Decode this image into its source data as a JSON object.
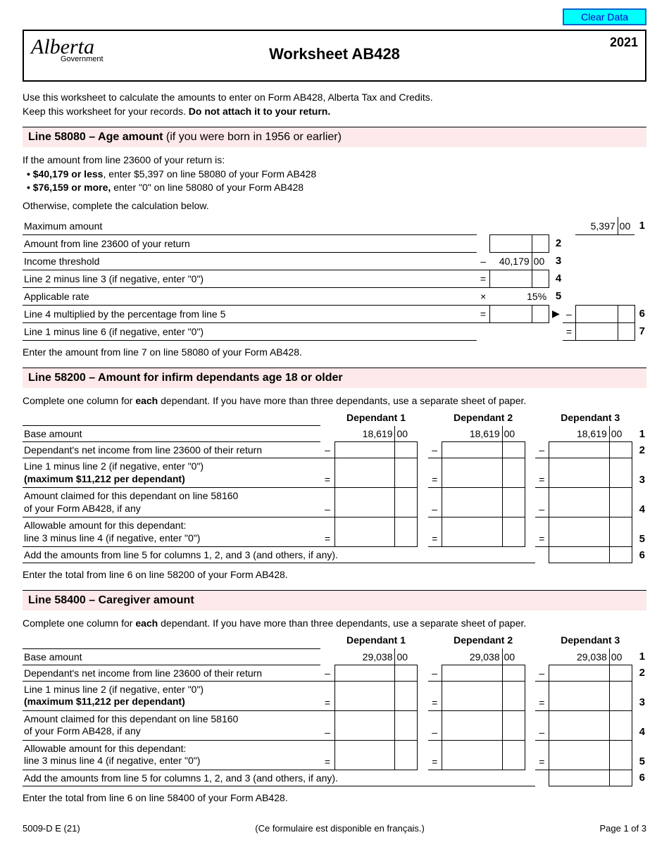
{
  "header": {
    "clear_button": "Clear Data",
    "logo_text": "Alberta",
    "logo_sub": "Government",
    "year": "2021",
    "title": "Worksheet AB428"
  },
  "intro": {
    "line1": "Use this worksheet to calculate the amounts to enter on Form AB428, Alberta Tax and Credits.",
    "line2_pre": "Keep this worksheet for your records. ",
    "line2_bold": "Do not attach it to your return."
  },
  "section_age": {
    "head_bold": "Line 58080 – Age amount",
    "head_rest": " (if you were born in 1956 or earlier)",
    "p1": "If the amount from line 23600 of your return is:",
    "b1_bold": "$40,179 or less",
    "b1_rest": ", enter $5,397 on line 58080 of your Form AB428",
    "b2_bold": "$76,159 or more,",
    "b2_rest": " enter \"0\" on line 58080 of your Form AB428",
    "p2": "Otherwise, complete the calculation below.",
    "rows": {
      "r1": {
        "label": "Maximum amount",
        "dollars": "5,397",
        "cents": "00",
        "num": "1"
      },
      "r2": {
        "label": "Amount from line 23600 of your return",
        "num": "2"
      },
      "r3": {
        "label": "Income threshold",
        "op": "–",
        "dollars": "40,179",
        "cents": "00",
        "num": "3"
      },
      "r4": {
        "label": "Line 2 minus line 3 (if negative, enter \"0\")",
        "op": "=",
        "num": "4"
      },
      "r5": {
        "label": "Applicable rate",
        "op": "×",
        "pct": "15%",
        "num": "5"
      },
      "r6": {
        "label": "Line 4 multiplied by the percentage from line 5",
        "op": "=",
        "arrow": "▶",
        "op2": "–",
        "num": "6"
      },
      "r7": {
        "label": "Line 1 minus line 6 (if negative, enter \"0\")",
        "op2": "=",
        "num": "7"
      }
    },
    "note": "Enter the amount from line 7 on line 58080 of your Form AB428."
  },
  "section_infirm": {
    "head_bold": "Line 58200 – Amount for infirm dependants age 18 or older",
    "intro_pre": "Complete one column for ",
    "intro_bold": "each",
    "intro_post": " dependant. If you have more than three dependants, use a separate sheet of paper.",
    "col_labels": {
      "d1": "Dependant 1",
      "d2": "Dependant 2",
      "d3": "Dependant 3"
    },
    "base_dollars": "18,619",
    "base_cents": "00",
    "rows": {
      "r1": {
        "label": "Base amount",
        "num": "1"
      },
      "r2": {
        "label": "Dependant's net income from line 23600 of their return",
        "op": "–",
        "num": "2"
      },
      "r3": {
        "label_a": "Line 1 minus line 2 (if negative, enter \"0\")",
        "label_b": "(maximum $11,212 per dependant)",
        "op": "=",
        "num": "3"
      },
      "r4": {
        "label_a": "Amount claimed for this dependant on line 58160",
        "label_b": "of your Form AB428, if any",
        "op": "–",
        "num": "4"
      },
      "r5": {
        "label_a": "Allowable amount for this dependant:",
        "label_b": "line 3 minus line 4 (if negative, enter \"0\")",
        "op": "=",
        "num": "5"
      },
      "r6": {
        "label": "Add the amounts from line 5 for columns 1, 2, and 3 (and others, if any).",
        "num": "6"
      }
    },
    "note": "Enter the total from line 6 on line 58200 of your Form AB428."
  },
  "section_caregiver": {
    "head_bold": "Line 58400 – Caregiver amount",
    "intro_pre": "Complete one column for ",
    "intro_bold": "each",
    "intro_post": " dependant. If you have more than three dependants, use a separate sheet of paper.",
    "col_labels": {
      "d1": "Dependant 1",
      "d2": "Dependant 2",
      "d3": "Dependant 3"
    },
    "base_dollars": "29,038",
    "base_cents": "00",
    "rows": {
      "r1": {
        "label": "Base amount",
        "num": "1"
      },
      "r2": {
        "label": "Dependant's net income from line 23600 of their return",
        "op": "–",
        "num": "2"
      },
      "r3": {
        "label_a": "Line 1 minus line 2 (if negative, enter \"0\")",
        "label_b": "(maximum $11,212 per dependant)",
        "op": "=",
        "num": "3"
      },
      "r4": {
        "label_a": "Amount claimed for this dependant on line 58160",
        "label_b": "of your Form AB428, if any",
        "op": "–",
        "num": "4"
      },
      "r5": {
        "label_a": "Allowable amount for this dependant:",
        "label_b": "line 3 minus line 4 (if negative, enter \"0\")",
        "op": "=",
        "num": "5"
      },
      "r6": {
        "label": "Add the amounts from line 5 for columns 1, 2, and 3 (and others, if any).",
        "num": "6"
      }
    },
    "note": "Enter the total from line 6 on line 58400 of your Form AB428."
  },
  "footer": {
    "code": "5009-D E (21)",
    "french": "(Ce formulaire est disponible en français.)",
    "page": "Page 1 of 3"
  }
}
